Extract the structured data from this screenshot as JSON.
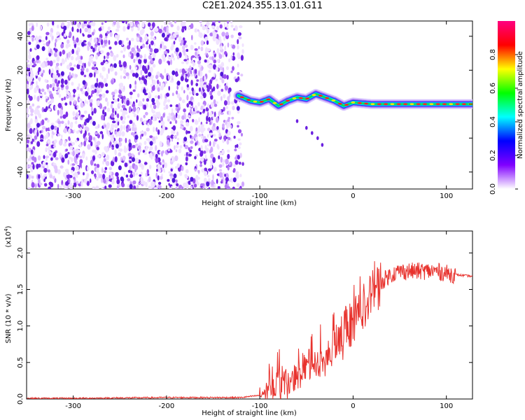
{
  "title": "C2E1.2024.355.13.01.G11",
  "chart_data": [
    {
      "type": "heatmap",
      "xlabel": "Height of straight line (km)",
      "ylabel": "Frequency (Hz)",
      "xlim": [
        -350,
        128
      ],
      "ylim": [
        -50,
        49
      ],
      "x_ticks": [
        -300,
        -200,
        -100,
        0,
        100
      ],
      "y_ticks": [
        -40,
        -20,
        0,
        20,
        40
      ],
      "noise_region_x": [
        -350,
        -118
      ],
      "echo_trace": {
        "x": [
          -123,
          -110,
          -100,
          -90,
          -80,
          -70,
          -60,
          -50,
          -40,
          -30,
          -20,
          -10,
          0,
          20,
          40,
          60,
          80,
          100,
          128
        ],
        "y": [
          5,
          2,
          1,
          3,
          -1,
          2,
          4,
          3,
          6,
          4,
          2,
          -1,
          1,
          0,
          0,
          0,
          0,
          0,
          0
        ]
      },
      "secondary_echo": {
        "x": [
          -60,
          -50,
          -44,
          -38,
          -33
        ],
        "y": [
          -10,
          -14,
          -17,
          -20,
          -24
        ]
      },
      "colorbar": {
        "label": "Normalized spectral amplitude",
        "range": [
          0,
          1
        ],
        "ticks": [
          "0.0",
          "0.2",
          "0.4",
          "0.6",
          "0.8"
        ],
        "colors": [
          "#ffffff",
          "#8000ff",
          "#0000ff",
          "#00ffff",
          "#00ff00",
          "#ffff00",
          "#ff0000",
          "#ff0080"
        ]
      }
    },
    {
      "type": "line",
      "xlabel": "Height of straight line (km)",
      "ylabel": "SNR (10 * v/v)",
      "y_multiplier": "(x10",
      "y_multiplier_exp": "4",
      "y_multiplier_close": ")",
      "xlim": [
        -350,
        128
      ],
      "ylim": [
        0,
        2.3
      ],
      "x_ticks": [
        -300,
        -200,
        -100,
        0,
        100
      ],
      "y_ticks": [
        "0.0",
        "0.5",
        "1.0",
        "1.5",
        "2.0"
      ],
      "color": "#e8322d",
      "series": [
        {
          "x": [
            -350,
            -300,
            -200,
            -120,
            -100,
            -90,
            -80,
            -70,
            -60,
            -50,
            -40,
            -30,
            -20,
            -10,
            0,
            10,
            20,
            30,
            40,
            50,
            60,
            70,
            80,
            90,
            100,
            110,
            128
          ],
          "y": [
            0.01,
            0.01,
            0.02,
            0.02,
            0.05,
            0.15,
            0.2,
            0.25,
            0.3,
            0.45,
            0.5,
            0.55,
            0.7,
            0.95,
            1.1,
            1.25,
            1.4,
            1.6,
            1.7,
            1.75,
            1.75,
            1.75,
            1.75,
            1.75,
            1.72,
            1.7,
            1.68
          ]
        }
      ]
    }
  ]
}
